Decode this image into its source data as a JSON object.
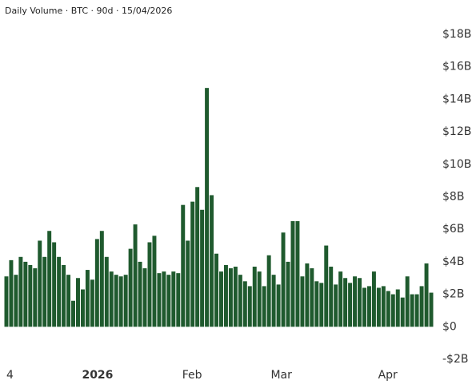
{
  "chart_data": {
    "type": "bar",
    "title": "Daily Volume · BTC · 90d · 15/04/2026",
    "values": [
      3.1,
      4.1,
      3.2,
      4.3,
      4.0,
      3.8,
      3.6,
      5.3,
      4.3,
      5.9,
      5.2,
      4.3,
      3.8,
      3.2,
      1.6,
      3.0,
      2.3,
      3.5,
      2.9,
      5.4,
      5.9,
      4.3,
      3.4,
      3.2,
      3.1,
      3.2,
      4.8,
      6.3,
      4.0,
      3.6,
      5.2,
      5.6,
      3.3,
      3.4,
      3.2,
      3.4,
      3.3,
      7.5,
      5.3,
      7.7,
      8.6,
      7.2,
      14.7,
      8.1,
      4.5,
      3.4,
      3.8,
      3.6,
      3.7,
      3.2,
      2.8,
      2.5,
      3.7,
      3.4,
      2.5,
      4.4,
      3.2,
      2.6,
      5.8,
      4.0,
      6.5,
      6.5,
      3.1,
      3.9,
      3.6,
      2.8,
      2.7,
      5.0,
      3.7,
      2.6,
      3.4,
      3.0,
      2.7,
      3.1,
      3.0,
      2.4,
      2.5,
      3.4,
      2.4,
      2.5,
      2.2,
      2.0,
      2.3,
      1.8,
      3.1,
      2.0,
      2.0,
      2.5,
      3.9,
      2.1
    ],
    "color": "#1f5a2e",
    "xlim": [
      0,
      90
    ],
    "xticks": [
      {
        "value": 0.5,
        "label": "4"
      },
      {
        "value": 19.6,
        "label": "2026",
        "bold": true
      },
      {
        "value": 39.4,
        "label": "Feb"
      },
      {
        "value": 58.1,
        "label": "Mar"
      },
      {
        "value": 80.4,
        "label": "Apr"
      }
    ],
    "ylim": [
      -2,
      18
    ],
    "yticks": [
      {
        "value": -2,
        "label": "-$2B"
      },
      {
        "value": 0,
        "label": "$0"
      },
      {
        "value": 2,
        "label": "$2B"
      },
      {
        "value": 4,
        "label": "$4B"
      },
      {
        "value": 6,
        "label": "$6B"
      },
      {
        "value": 8,
        "label": "$8B"
      },
      {
        "value": 10,
        "label": "$10B"
      },
      {
        "value": 12,
        "label": "$12B"
      },
      {
        "value": 14,
        "label": "$14B"
      },
      {
        "value": 16,
        "label": "$16B"
      },
      {
        "value": 18,
        "label": "$18B"
      }
    ],
    "yaxis_side": "right"
  }
}
